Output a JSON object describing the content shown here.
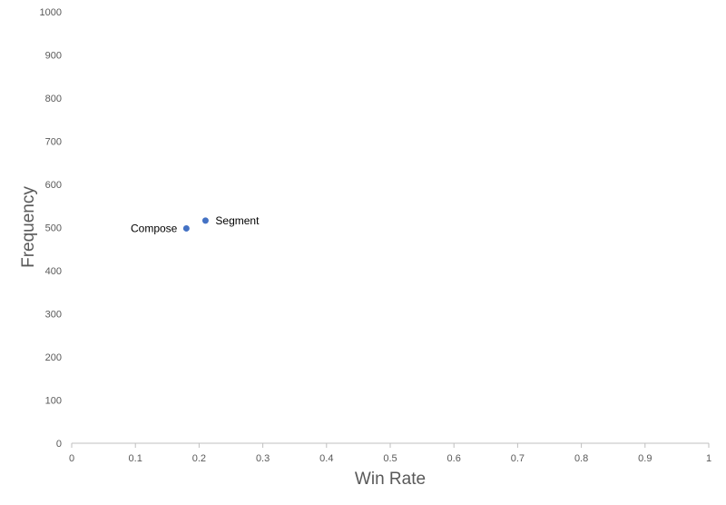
{
  "chart_data": {
    "type": "scatter",
    "title": "",
    "xlabel": "Win Rate",
    "ylabel": "Frequency",
    "xlim": [
      0,
      1
    ],
    "ylim": [
      0,
      1000
    ],
    "x_ticks": [
      "0",
      "0.1",
      "0.2",
      "0.3",
      "0.4",
      "0.5",
      "0.6",
      "0.7",
      "0.8",
      "0.9",
      "1"
    ],
    "y_ticks": [
      "0",
      "100",
      "200",
      "300",
      "400",
      "500",
      "600",
      "700",
      "800",
      "900",
      "1000"
    ],
    "grid": false,
    "legend": "none",
    "marker_color": "#4472c4",
    "points": [
      {
        "label": "Compose",
        "x": 0.18,
        "y": 498,
        "label_side": "left"
      },
      {
        "label": "Segment",
        "x": 0.21,
        "y": 516,
        "label_side": "right"
      }
    ]
  }
}
